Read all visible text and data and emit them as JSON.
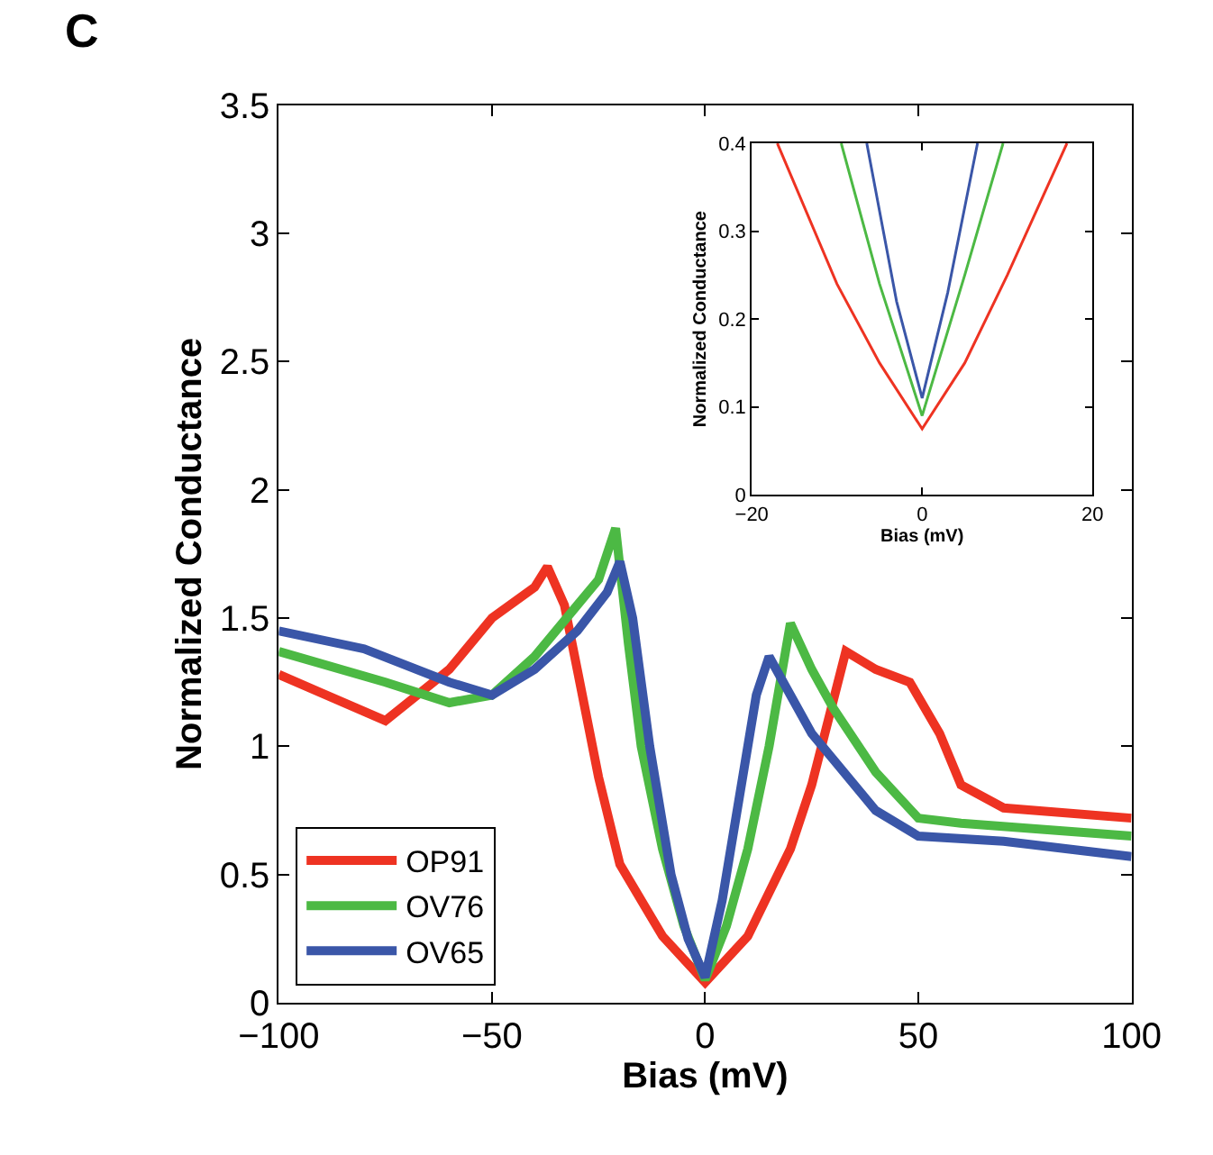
{
  "chart_data": [
    {
      "type": "line",
      "xlabel": "Bias (mV)",
      "ylabel": "Normalized Conductance",
      "annotations": [
        "C"
      ],
      "xlim": [
        -100,
        100
      ],
      "xticks": [
        -100,
        -50,
        0,
        50,
        100
      ],
      "ylim": [
        0,
        3.5
      ],
      "yticks": [
        0,
        0.5,
        1,
        1.5,
        2,
        2.5,
        3,
        3.5
      ],
      "legend": "bottom left",
      "line_style": "solid",
      "series": [
        {
          "name": "OP91",
          "color": "#ee3322",
          "x": [
            -100,
            -75,
            -60,
            -50,
            -40,
            -37,
            -33,
            -30,
            -25,
            -20,
            -10,
            0,
            10,
            20,
            25,
            33,
            40,
            48,
            55,
            60,
            70,
            100
          ],
          "values": [
            1.28,
            1.1,
            1.3,
            1.5,
            1.62,
            1.7,
            1.55,
            1.3,
            0.88,
            0.54,
            0.26,
            0.08,
            0.26,
            0.6,
            0.85,
            1.37,
            1.3,
            1.25,
            1.05,
            0.85,
            0.76,
            0.72
          ]
        },
        {
          "name": "OV76",
          "color": "#4cb944",
          "x": [
            -100,
            -75,
            -60,
            -50,
            -40,
            -30,
            -25,
            -21,
            -18,
            -15,
            -10,
            -5,
            0,
            5,
            10,
            15,
            20,
            25,
            30,
            40,
            50,
            60,
            100
          ],
          "values": [
            1.37,
            1.25,
            1.17,
            1.2,
            1.35,
            1.55,
            1.65,
            1.85,
            1.4,
            1.0,
            0.6,
            0.3,
            0.09,
            0.3,
            0.6,
            1.0,
            1.48,
            1.3,
            1.15,
            0.9,
            0.72,
            0.7,
            0.65
          ]
        },
        {
          "name": "OV65",
          "color": "#3a56a8",
          "x": [
            -100,
            -80,
            -60,
            -50,
            -40,
            -30,
            -23,
            -20,
            -17,
            -13,
            -8,
            -4,
            0,
            4,
            8,
            12,
            15,
            20,
            25,
            30,
            40,
            50,
            70,
            100
          ],
          "values": [
            1.45,
            1.38,
            1.25,
            1.2,
            1.3,
            1.45,
            1.6,
            1.72,
            1.5,
            1.0,
            0.5,
            0.25,
            0.1,
            0.4,
            0.8,
            1.2,
            1.35,
            1.2,
            1.05,
            0.95,
            0.75,
            0.65,
            0.63,
            0.57
          ]
        }
      ]
    },
    {
      "type": "line",
      "xlabel": "Bias (mV)",
      "ylabel": "Normalized Conductance",
      "xlim": [
        -20,
        20
      ],
      "xticks": [
        -20,
        0,
        20
      ],
      "ylim": [
        0,
        0.4
      ],
      "yticks": [
        0,
        0.1,
        0.2,
        0.3,
        0.4
      ],
      "line_style": "solid",
      "series": [
        {
          "color": "#ee3322",
          "x": [
            -17,
            -10,
            -5,
            0,
            5,
            10,
            17
          ],
          "values": [
            0.4,
            0.24,
            0.15,
            0.075,
            0.15,
            0.25,
            0.4
          ]
        },
        {
          "color": "#4cb944",
          "x": [
            -9.5,
            -5,
            0,
            5,
            9.5
          ],
          "values": [
            0.4,
            0.24,
            0.09,
            0.25,
            0.4
          ]
        },
        {
          "color": "#3a56a8",
          "x": [
            -6.5,
            -3,
            0,
            3,
            6.5
          ],
          "values": [
            0.4,
            0.22,
            0.11,
            0.23,
            0.4
          ]
        }
      ]
    }
  ]
}
